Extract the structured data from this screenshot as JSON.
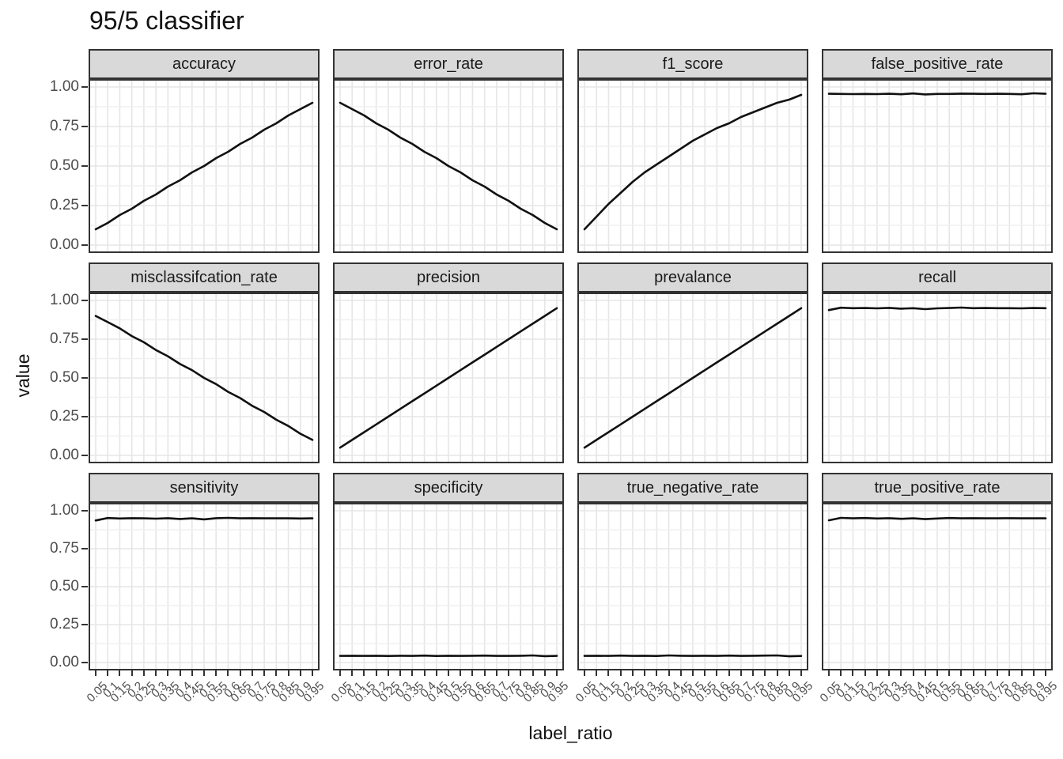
{
  "title": "95/5 classifier",
  "chart_data": {
    "type": "line",
    "layout": "facet_wrap 3 rows x 4 cols",
    "title": "95/5 classifier",
    "xlabel": "label_ratio",
    "ylabel": "value",
    "ylim": [
      0,
      1
    ],
    "grid": "on",
    "legend": "none",
    "x_tick_labels": [
      "0.05",
      "0.1",
      "0.15",
      "0.2",
      "0.25",
      "0.3",
      "0.35",
      "0.4",
      "0.45",
      "0.5",
      "0.55",
      "0.6",
      "0.65",
      "0.7",
      "0.75",
      "0.8",
      "0.85",
      "0.9",
      "0.95"
    ],
    "y_tick_labels": [
      "1.00",
      "0.75",
      "0.50",
      "0.25",
      "0.00"
    ],
    "x": [
      0.05,
      0.1,
      0.15,
      0.2,
      0.25,
      0.3,
      0.35,
      0.4,
      0.45,
      0.5,
      0.55,
      0.6,
      0.65,
      0.7,
      0.75,
      0.8,
      0.85,
      0.9,
      0.95
    ],
    "panels": [
      {
        "title": "accuracy",
        "values": [
          0.1,
          0.14,
          0.19,
          0.23,
          0.28,
          0.32,
          0.37,
          0.41,
          0.46,
          0.5,
          0.55,
          0.59,
          0.64,
          0.68,
          0.73,
          0.77,
          0.82,
          0.86,
          0.9
        ]
      },
      {
        "title": "error_rate",
        "values": [
          0.9,
          0.86,
          0.82,
          0.77,
          0.73,
          0.68,
          0.64,
          0.59,
          0.55,
          0.5,
          0.46,
          0.41,
          0.37,
          0.32,
          0.28,
          0.23,
          0.19,
          0.14,
          0.1
        ]
      },
      {
        "title": "f1_score",
        "values": [
          0.1,
          0.18,
          0.26,
          0.33,
          0.4,
          0.46,
          0.51,
          0.56,
          0.61,
          0.66,
          0.7,
          0.74,
          0.77,
          0.81,
          0.84,
          0.87,
          0.9,
          0.92,
          0.95
        ]
      },
      {
        "title": "false_positive_rate",
        "values": [
          0.957,
          0.956,
          0.955,
          0.956,
          0.955,
          0.957,
          0.954,
          0.959,
          0.953,
          0.956,
          0.956,
          0.958,
          0.957,
          0.956,
          0.957,
          0.956,
          0.954,
          0.96,
          0.957
        ]
      },
      {
        "title": "misclassifcation_rate",
        "values": [
          0.9,
          0.86,
          0.82,
          0.77,
          0.73,
          0.68,
          0.64,
          0.59,
          0.55,
          0.5,
          0.46,
          0.41,
          0.37,
          0.32,
          0.28,
          0.23,
          0.19,
          0.14,
          0.1
        ]
      },
      {
        "title": "precision",
        "values": [
          0.05,
          0.1,
          0.15,
          0.2,
          0.25,
          0.3,
          0.35,
          0.4,
          0.45,
          0.5,
          0.55,
          0.6,
          0.65,
          0.7,
          0.75,
          0.8,
          0.85,
          0.9,
          0.95
        ]
      },
      {
        "title": "prevalance",
        "values": [
          0.05,
          0.1,
          0.15,
          0.2,
          0.25,
          0.3,
          0.35,
          0.4,
          0.45,
          0.5,
          0.55,
          0.6,
          0.65,
          0.7,
          0.75,
          0.8,
          0.85,
          0.9,
          0.95
        ]
      },
      {
        "title": "recall",
        "values": [
          0.938,
          0.953,
          0.95,
          0.951,
          0.949,
          0.952,
          0.947,
          0.95,
          0.944,
          0.949,
          0.951,
          0.954,
          0.95,
          0.951,
          0.95,
          0.95,
          0.949,
          0.951,
          0.95
        ]
      },
      {
        "title": "sensitivity",
        "values": [
          0.936,
          0.952,
          0.949,
          0.951,
          0.95,
          0.948,
          0.951,
          0.946,
          0.95,
          0.943,
          0.951,
          0.953,
          0.95,
          0.951,
          0.95,
          0.95,
          0.95,
          0.949,
          0.95
        ]
      },
      {
        "title": "specificity",
        "values": [
          0.044,
          0.045,
          0.044,
          0.045,
          0.043,
          0.045,
          0.044,
          0.046,
          0.043,
          0.045,
          0.044,
          0.045,
          0.046,
          0.044,
          0.044,
          0.045,
          0.047,
          0.042,
          0.044
        ]
      },
      {
        "title": "true_negative_rate",
        "values": [
          0.044,
          0.045,
          0.044,
          0.046,
          0.044,
          0.045,
          0.043,
          0.047,
          0.045,
          0.044,
          0.045,
          0.044,
          0.046,
          0.044,
          0.045,
          0.046,
          0.047,
          0.041,
          0.043
        ]
      },
      {
        "title": "true_positive_rate",
        "values": [
          0.937,
          0.953,
          0.95,
          0.952,
          0.949,
          0.951,
          0.947,
          0.95,
          0.945,
          0.949,
          0.952,
          0.95,
          0.951,
          0.95,
          0.95,
          0.951,
          0.95,
          0.95,
          0.95
        ]
      }
    ],
    "colors": {
      "line": "#111111",
      "strip_bg": "#D9D9D9",
      "panel_border": "#333333",
      "grid_major": "#E6E6E6",
      "grid_minor": "#F0F0F0",
      "tick_label": "#4D4D4D",
      "background": "#FFFFFF"
    }
  }
}
